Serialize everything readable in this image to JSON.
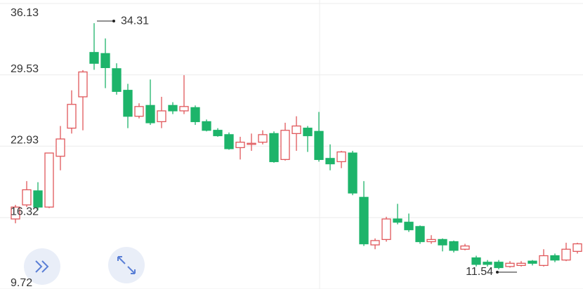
{
  "chart_data": {
    "type": "candlestick",
    "open": [
      16.2,
      17.5,
      18.8,
      17.3,
      22.0,
      24.6,
      27.5,
      31.6,
      31.5,
      30.1,
      28.1,
      25.7,
      26.7,
      25.2,
      26.7,
      26.2,
      26.5,
      25.2,
      24.4,
      24.0,
      22.8,
      23.1,
      23.3,
      24.1,
      21.7,
      24.1,
      24.6,
      24.3,
      21.8,
      21.5,
      22.3,
      18.2,
      13.8,
      14.3,
      16.2,
      15.9,
      15.5,
      14.1,
      14.3,
      14.1,
      13.4,
      12.6,
      12.2,
      12.2,
      11.8,
      11.9,
      12.3,
      11.9,
      12.8,
      12.4,
      13.2
    ],
    "high": [
      17.5,
      19.7,
      19.6,
      22.3,
      24.8,
      28.1,
      29.97,
      34.31,
      32.9,
      30.6,
      28.7,
      26.9,
      29.1,
      27.5,
      27.0,
      29.5,
      26.7,
      25.4,
      24.6,
      24.2,
      23.8,
      24.1,
      24.4,
      24.3,
      25.1,
      25.7,
      24.8,
      26.1,
      23.1,
      22.5,
      22.5,
      19.7,
      14.4,
      16.4,
      17.6,
      16.7,
      15.6,
      14.7,
      14.4,
      14.2,
      13.9,
      12.8,
      12.4,
      12.4,
      12.3,
      12.3,
      12.4,
      13.4,
      13.0,
      14.0,
      14.0
    ],
    "low": [
      15.8,
      17.3,
      17.0,
      17.2,
      20.7,
      24.1,
      24.4,
      30.0,
      28.3,
      27.7,
      24.6,
      25.5,
      24.9,
      24.6,
      25.9,
      25.9,
      24.9,
      24.3,
      23.8,
      22.6,
      21.7,
      22.5,
      23.1,
      21.4,
      21.6,
      22.5,
      22.4,
      21.5,
      20.7,
      20.9,
      18.4,
      13.7,
      13.4,
      14.1,
      15.7,
      15.0,
      13.9,
      13.9,
      13.2,
      13.1,
      13.3,
      11.8,
      11.8,
      11.54,
      11.7,
      11.8,
      11.9,
      11.8,
      12.2,
      12.3,
      13.0
    ],
    "close": [
      17.3,
      18.9,
      17.3,
      22.3,
      23.6,
      26.8,
      29.8,
      30.6,
      30.2,
      28.0,
      25.7,
      26.6,
      25.1,
      26.2,
      26.2,
      26.6,
      25.2,
      24.4,
      23.9,
      22.7,
      23.3,
      23.2,
      24.0,
      21.5,
      24.4,
      24.8,
      23.9,
      21.7,
      21.3,
      22.4,
      18.6,
      13.9,
      14.2,
      16.2,
      15.9,
      15.2,
      14.1,
      14.3,
      13.8,
      13.3,
      13.7,
      12.0,
      12.0,
      11.7,
      12.1,
      12.1,
      12.1,
      12.8,
      12.4,
      13.4,
      13.9
    ],
    "up_color": "#e0575b",
    "down_color": "#1db46a",
    "ylim": [
      9.72,
      36.13
    ],
    "yticks": [
      9.72,
      16.32,
      22.93,
      29.53,
      36.13
    ],
    "grid": true
  }
}
